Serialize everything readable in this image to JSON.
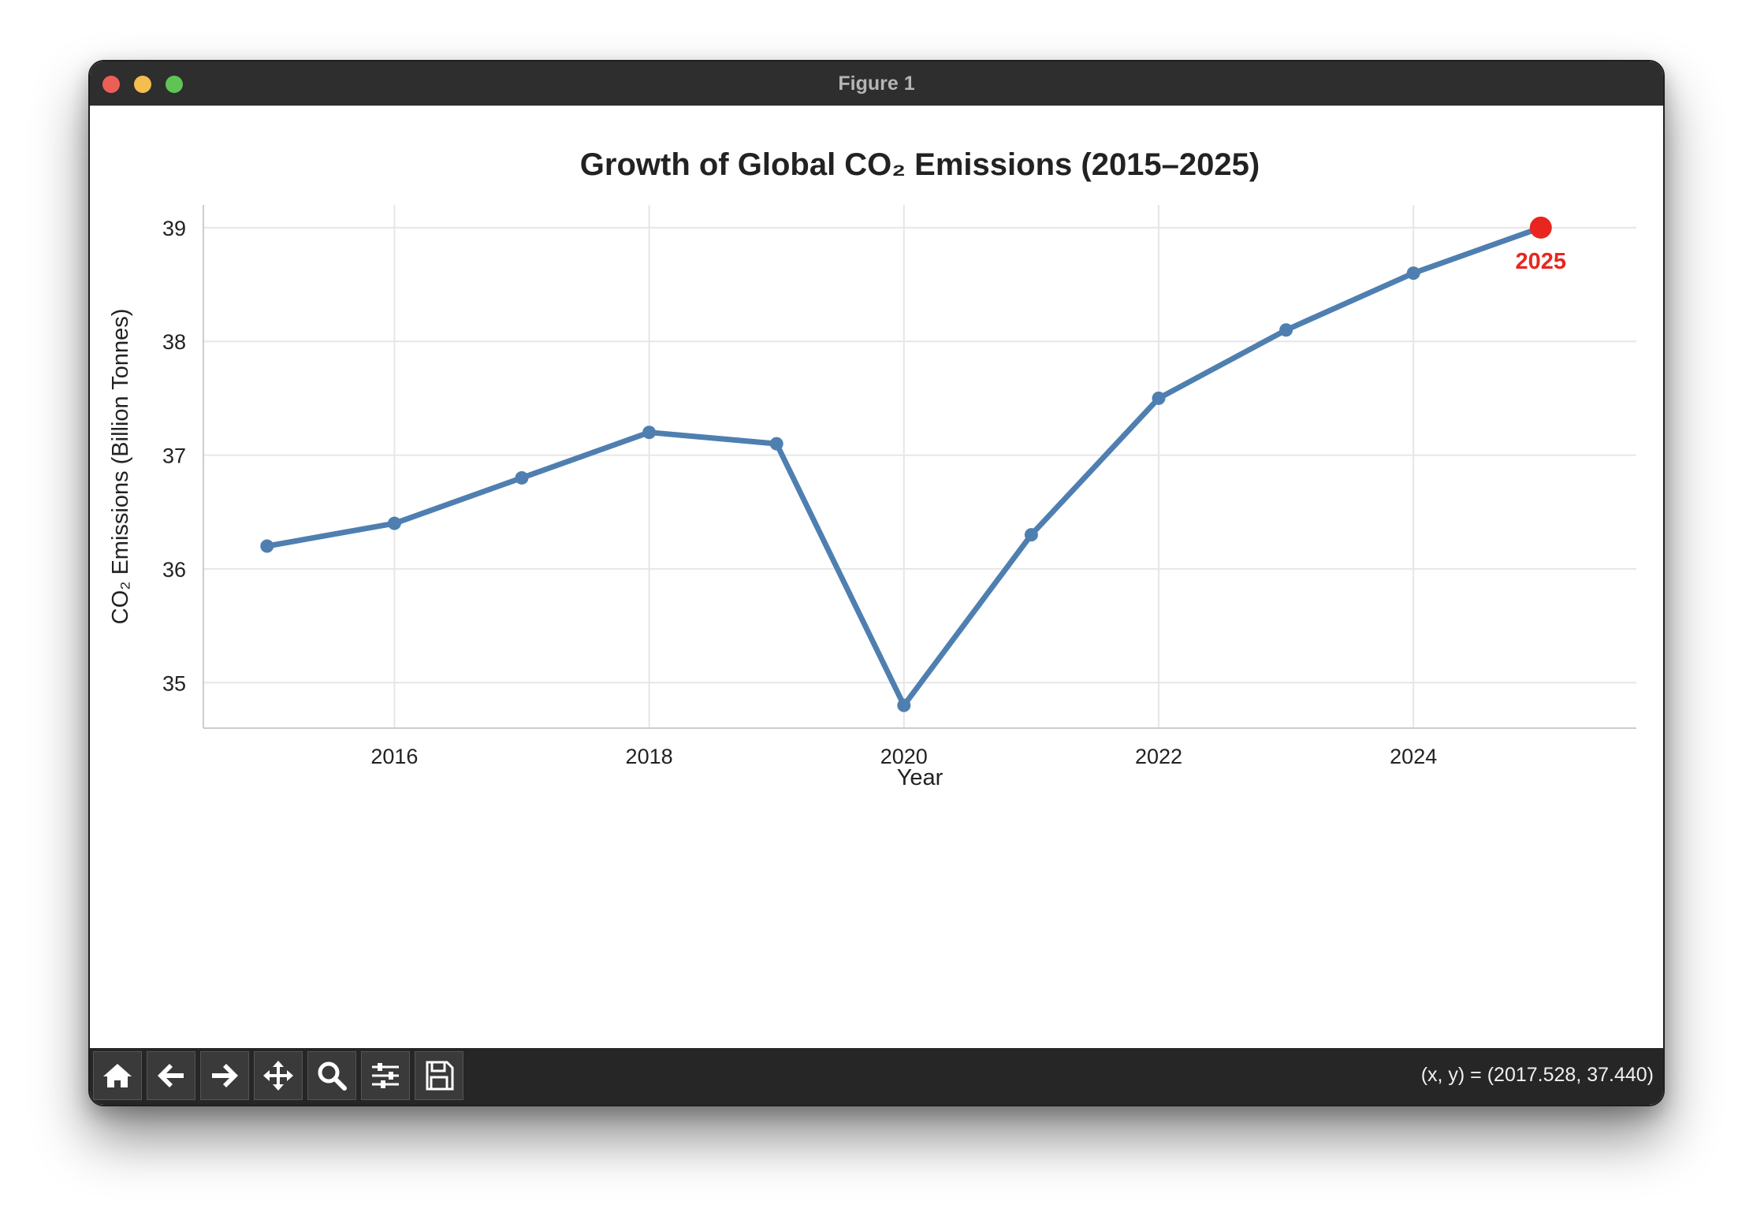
{
  "window": {
    "title": "Figure 1"
  },
  "toolbar": {
    "buttons": [
      {
        "name": "home-icon"
      },
      {
        "name": "back-arrow-icon"
      },
      {
        "name": "forward-arrow-icon"
      },
      {
        "name": "pan-icon"
      },
      {
        "name": "zoom-icon"
      },
      {
        "name": "configure-subplots-icon"
      },
      {
        "name": "save-icon"
      }
    ],
    "coords": "(x, y) = (2017.528, 37.440)"
  },
  "chart_data": {
    "type": "line",
    "title": "Growth of Global CO₂ Emissions (2015–2025)",
    "xlabel": "Year",
    "ylabel": "CO₂ Emissions (Billion Tonnes)",
    "x": [
      2015,
      2016,
      2017,
      2018,
      2019,
      2020,
      2021,
      2022,
      2023,
      2024,
      2025
    ],
    "series": [
      {
        "values": [
          36.2,
          36.4,
          36.8,
          37.2,
          37.1,
          34.8,
          36.3,
          37.5,
          38.1,
          38.6,
          39.0
        ]
      }
    ],
    "xlim": [
      2014.5,
      2025.75
    ],
    "ylim": [
      34.6,
      39.2
    ],
    "xticks": [
      2016,
      2018,
      2020,
      2022,
      2024
    ],
    "yticks": [
      35,
      36,
      37,
      38,
      39
    ],
    "grid": true,
    "line_color": "#4f7fb0",
    "highlight": {
      "x": 2025,
      "y": 39.0,
      "label": "2025",
      "color": "#e8261f"
    }
  }
}
